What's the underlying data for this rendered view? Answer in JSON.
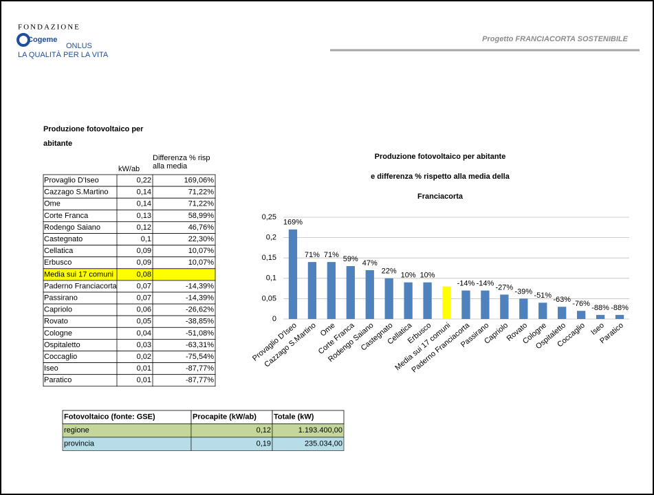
{
  "header": {
    "logo_top": "FONDAZIONE",
    "logo_name": "Cogeme",
    "logo_sub": "ONLUS",
    "logo_tagline": "LA QUALITÀ PER LA VITA",
    "project": "Progetto FRANCIACORTA SOSTENIBILE"
  },
  "table": {
    "title": "Produzione fotovoltaico per abitante",
    "headers": [
      "kW/ab",
      "Differenza % risp alla media"
    ],
    "rows": [
      [
        "Provaglio D'Iseo",
        "0,22",
        "169,06%"
      ],
      [
        "Cazzago S.Martino",
        "0,14",
        "71,22%"
      ],
      [
        "Ome",
        "0,14",
        "71,22%"
      ],
      [
        "Corte Franca",
        "0,13",
        "58,99%"
      ],
      [
        "Rodengo Saiano",
        "0,12",
        "46,76%"
      ],
      [
        "Castegnato",
        "0,1",
        "22,30%"
      ],
      [
        "Cellatica",
        "0,09",
        "10,07%"
      ],
      [
        "Erbusco",
        "0,09",
        "10,07%"
      ],
      [
        "Media sui 17 comuni",
        "0,08",
        null
      ],
      [
        "Paderno Franciacorta",
        "0,07",
        "-14,39%"
      ],
      [
        "Passirano",
        "0,07",
        "-14,39%"
      ],
      [
        "Capriolo",
        "0,06",
        "-26,62%"
      ],
      [
        "Rovato",
        "0,05",
        "-38,85%"
      ],
      [
        "Cologne",
        "0,04",
        "-51,08%"
      ],
      [
        "Ospitaletto",
        "0,03",
        "-63,31%"
      ],
      [
        "Coccaglio",
        "0,02",
        "-75,54%"
      ],
      [
        "Iseo",
        "0,01",
        "-87,77%"
      ],
      [
        "Paratico",
        "0,01",
        "-87,77%"
      ]
    ]
  },
  "chart_data": {
    "type": "bar",
    "title": [
      "Produzione fotovoltaico per abitante",
      "e differenza % rispetto alla media della",
      "Franciacorta"
    ],
    "categories": [
      "Provaglio D'Iseo",
      "Cazzago S.Martino",
      "Ome",
      "Corte Franca",
      "Rodengo Saiano",
      "Castegnato",
      "Cellatica",
      "Erbusco",
      "Media sui 17 comuni",
      "Paderno Franciacorta",
      "Passirano",
      "Capriolo",
      "Rovato",
      "Cologne",
      "Ospitaletto",
      "Coccaglio",
      "Iseo",
      "Paratico"
    ],
    "values": [
      0.22,
      0.14,
      0.14,
      0.13,
      0.12,
      0.1,
      0.09,
      0.09,
      0.08,
      0.07,
      0.07,
      0.06,
      0.05,
      0.04,
      0.03,
      0.02,
      0.01,
      0.01
    ],
    "percent_labels": [
      "169%",
      "71%",
      "71%",
      "59%",
      "47%",
      "22%",
      "10%",
      "10%",
      null,
      "-14%",
      "-14%",
      "-27%",
      "-39%",
      "-51%",
      "-63%",
      "-76%",
      "-88%",
      "-88%"
    ],
    "colors": [
      "#4f81bd",
      "#4f81bd",
      "#4f81bd",
      "#4f81bd",
      "#4f81bd",
      "#4f81bd",
      "#4f81bd",
      "#4f81bd",
      "#ffff00",
      "#4f81bd",
      "#4f81bd",
      "#4f81bd",
      "#4f81bd",
      "#4f81bd",
      "#4f81bd",
      "#4f81bd",
      "#4f81bd",
      "#4f81bd"
    ],
    "ylim": [
      0,
      0.25
    ],
    "yticks": [
      0,
      {
        "value": 0.05,
        "label": "0,05"
      },
      {
        "value": 0.1,
        "label": "0,1"
      },
      {
        "value": 0.15,
        "label": "0,15"
      },
      {
        "value": 0.2,
        "label": "0,2"
      },
      {
        "value": 0.25,
        "label": "0,25"
      }
    ],
    "grid": true
  },
  "table2": {
    "headers": [
      "Fotovoltaico (fonte: GSE)",
      "Procapite (kW/ab)",
      "Totale (kW)"
    ],
    "rows": [
      [
        "regione",
        "0,12",
        "1.193.400,00"
      ],
      [
        "provincia",
        "0,19",
        "235.034,00"
      ]
    ],
    "row_colors": [
      "#c4d79b",
      "#b7dee8"
    ]
  }
}
